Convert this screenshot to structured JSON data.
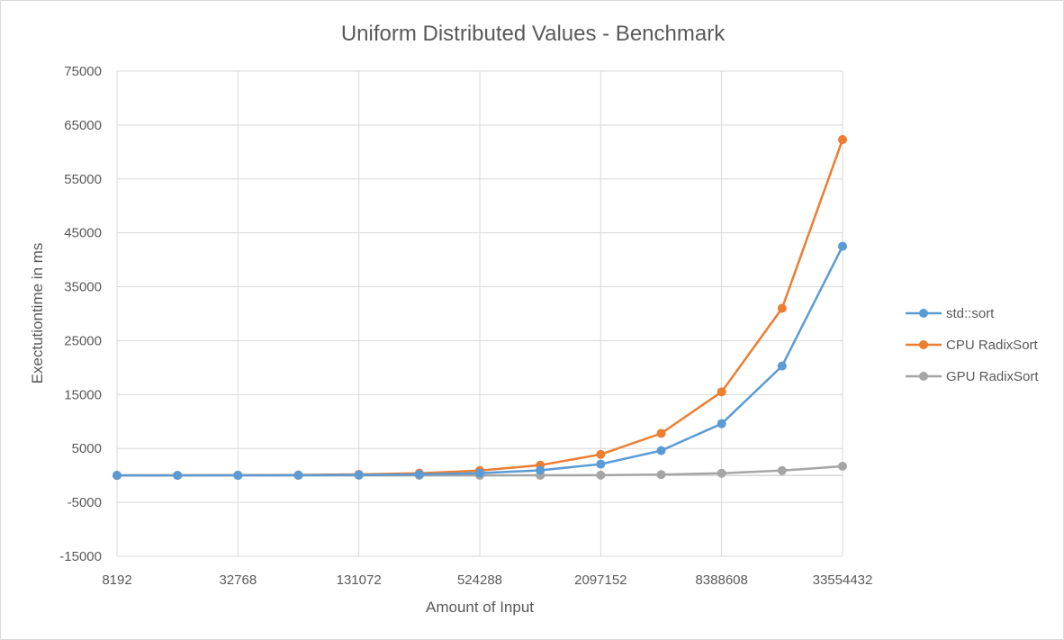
{
  "chart_data": {
    "type": "line",
    "title": "Uniform Distributed Values - Benchmark",
    "xlabel": "Amount of Input",
    "ylabel": "Exectutiontime in ms",
    "x_tick_labels": [
      "8192",
      "32768",
      "131072",
      "524288",
      "2097152",
      "8388608",
      "33554432"
    ],
    "y_tick_labels": [
      "75000",
      "65000",
      "55000",
      "45000",
      "35000",
      "25000",
      "15000",
      "5000",
      "-5000",
      "-15000"
    ],
    "x": [
      8192,
      16384,
      32768,
      65536,
      131072,
      262144,
      524288,
      1048576,
      2097152,
      4194304,
      8388608,
      16777216,
      33554432
    ],
    "ylim": [
      -15000,
      75000
    ],
    "grid": true,
    "legend_position": "right",
    "series": [
      {
        "name": "std::sort",
        "color": "#5b9bd5",
        "values": [
          5,
          10,
          20,
          45,
          95,
          200,
          430,
          950,
          2100,
          4600,
          9600,
          20300,
          42500
        ]
      },
      {
        "name": "CPU RadixSort",
        "color": "#ed7d31",
        "values": [
          10,
          20,
          40,
          90,
          200,
          420,
          900,
          1900,
          3900,
          7800,
          15500,
          31000,
          62300
        ]
      },
      {
        "name": "GPU RadixSort",
        "color": "#a5a5a5",
        "values": [
          5,
          5,
          5,
          5,
          5,
          5,
          10,
          20,
          50,
          150,
          400,
          900,
          1700
        ]
      }
    ]
  }
}
